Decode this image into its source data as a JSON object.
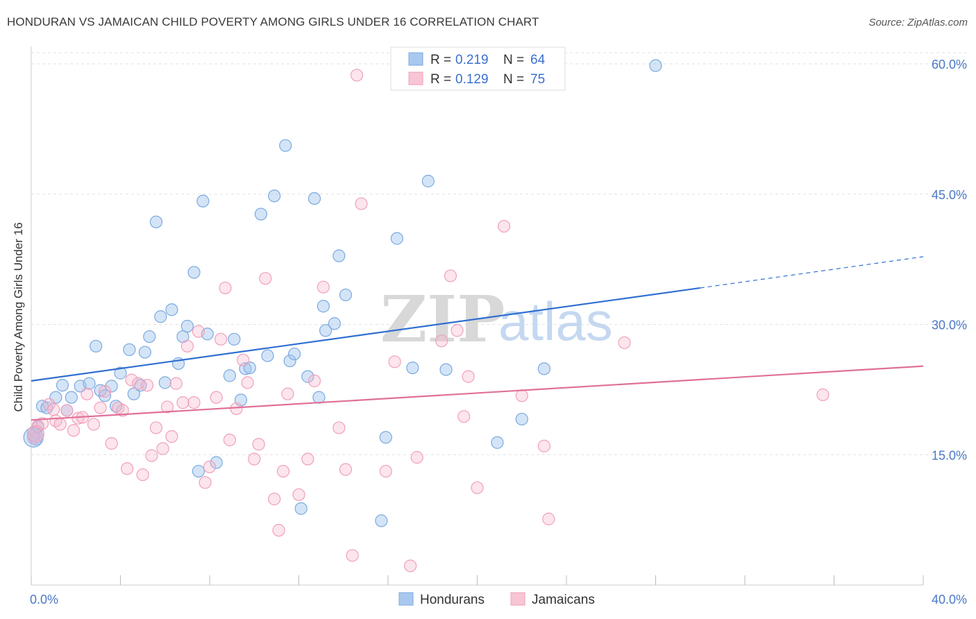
{
  "title": "HONDURAN VS JAMAICAN CHILD POVERTY AMONG GIRLS UNDER 16 CORRELATION CHART",
  "source": "Source: ZipAtlas.com",
  "watermark": {
    "zip": "ZIP",
    "atlas": "atlas"
  },
  "chart_data": {
    "type": "scatter",
    "ylabel": "Child Poverty Among Girls Under 16",
    "xlim": [
      0,
      40
    ],
    "ylim": [
      0,
      62
    ],
    "x_tick_labels": [
      "0.0%",
      "40.0%"
    ],
    "y_ticks": [
      15,
      30,
      45,
      60
    ],
    "y_tick_labels": [
      "15.0%",
      "30.0%",
      "45.0%",
      "60.0%"
    ],
    "grid": true,
    "legend": {
      "placement": "top-center",
      "entries": [
        {
          "r_label": "R =",
          "r_value": "0.219",
          "n_label": "N =",
          "n_value": "64"
        },
        {
          "r_label": "R =",
          "r_value": "0.129",
          "n_label": "N =",
          "n_value": "75"
        }
      ]
    },
    "series": [
      {
        "name": "Hondurans",
        "color": "#7aaae0",
        "trend": {
          "x0": 0,
          "y0": 23.5,
          "x1": 30,
          "y1": 34.2,
          "x_dash_end": 40,
          "y_dash_end": 37.8,
          "color": "#2f6fd1"
        },
        "points": [
          [
            0.1,
            17.2
          ],
          [
            0.2,
            16.8
          ],
          [
            0.3,
            18.2
          ],
          [
            0.5,
            20.6
          ],
          [
            0.7,
            20.4
          ],
          [
            1.1,
            21.6
          ],
          [
            1.4,
            23.0
          ],
          [
            1.6,
            20.1
          ],
          [
            1.8,
            21.6
          ],
          [
            2.2,
            22.9
          ],
          [
            2.6,
            23.2
          ],
          [
            2.9,
            27.5
          ],
          [
            3.1,
            22.4
          ],
          [
            3.3,
            21.8
          ],
          [
            3.6,
            22.9
          ],
          [
            3.8,
            20.6
          ],
          [
            4.0,
            24.4
          ],
          [
            4.4,
            27.1
          ],
          [
            4.6,
            22.0
          ],
          [
            4.9,
            23.0
          ],
          [
            5.1,
            26.8
          ],
          [
            5.3,
            28.6
          ],
          [
            5.6,
            41.8
          ],
          [
            5.8,
            30.9
          ],
          [
            6.0,
            23.3
          ],
          [
            6.3,
            31.7
          ],
          [
            6.6,
            25.5
          ],
          [
            6.8,
            28.6
          ],
          [
            7.0,
            29.8
          ],
          [
            7.3,
            36.0
          ],
          [
            7.5,
            13.1
          ],
          [
            7.7,
            44.2
          ],
          [
            7.9,
            28.9
          ],
          [
            8.3,
            14.1
          ],
          [
            8.9,
            24.1
          ],
          [
            9.1,
            28.3
          ],
          [
            9.4,
            21.3
          ],
          [
            9.6,
            24.9
          ],
          [
            9.8,
            25.0
          ],
          [
            10.3,
            42.7
          ],
          [
            10.6,
            26.4
          ],
          [
            10.9,
            44.8
          ],
          [
            11.4,
            50.6
          ],
          [
            11.6,
            25.8
          ],
          [
            11.8,
            26.6
          ],
          [
            12.1,
            8.8
          ],
          [
            12.4,
            24.0
          ],
          [
            12.7,
            44.5
          ],
          [
            12.9,
            21.6
          ],
          [
            13.1,
            32.1
          ],
          [
            13.2,
            29.3
          ],
          [
            13.6,
            30.1
          ],
          [
            13.8,
            37.9
          ],
          [
            14.1,
            33.4
          ],
          [
            15.7,
            7.4
          ],
          [
            15.9,
            17.0
          ],
          [
            16.4,
            39.9
          ],
          [
            17.1,
            25.0
          ],
          [
            17.8,
            46.5
          ],
          [
            20.9,
            16.4
          ],
          [
            22.0,
            19.1
          ],
          [
            23.0,
            24.9
          ],
          [
            28.0,
            59.8
          ],
          [
            18.6,
            24.8
          ]
        ]
      },
      {
        "name": "Jamaicans",
        "color": "#f0a0ba",
        "trend": {
          "x0": 0,
          "y0": 19.0,
          "x1": 40,
          "y1": 25.2,
          "color": "#e07098"
        },
        "points": [
          [
            0.1,
            16.9
          ],
          [
            0.2,
            17.6
          ],
          [
            0.3,
            18.3
          ],
          [
            0.5,
            18.6
          ],
          [
            0.8,
            20.8
          ],
          [
            1.0,
            20.2
          ],
          [
            1.1,
            18.9
          ],
          [
            1.3,
            18.5
          ],
          [
            1.6,
            20.1
          ],
          [
            1.9,
            17.8
          ],
          [
            2.1,
            19.2
          ],
          [
            2.3,
            19.3
          ],
          [
            2.5,
            22.0
          ],
          [
            2.8,
            18.5
          ],
          [
            3.1,
            20.4
          ],
          [
            3.3,
            22.3
          ],
          [
            3.6,
            16.3
          ],
          [
            3.9,
            20.4
          ],
          [
            4.1,
            20.1
          ],
          [
            4.3,
            13.4
          ],
          [
            4.5,
            23.6
          ],
          [
            4.8,
            23.2
          ],
          [
            5.0,
            12.7
          ],
          [
            5.2,
            23.0
          ],
          [
            5.4,
            14.9
          ],
          [
            5.6,
            18.1
          ],
          [
            5.9,
            15.7
          ],
          [
            6.1,
            20.5
          ],
          [
            6.3,
            17.1
          ],
          [
            6.5,
            23.2
          ],
          [
            6.8,
            21.0
          ],
          [
            7.0,
            27.5
          ],
          [
            7.3,
            21.0
          ],
          [
            7.5,
            29.2
          ],
          [
            7.8,
            11.8
          ],
          [
            8.0,
            13.6
          ],
          [
            8.3,
            21.6
          ],
          [
            8.5,
            28.3
          ],
          [
            8.7,
            34.2
          ],
          [
            8.9,
            16.7
          ],
          [
            9.2,
            20.3
          ],
          [
            9.5,
            25.9
          ],
          [
            9.7,
            23.3
          ],
          [
            10.0,
            14.5
          ],
          [
            10.2,
            16.2
          ],
          [
            10.5,
            35.3
          ],
          [
            10.9,
            9.9
          ],
          [
            11.1,
            6.3
          ],
          [
            11.3,
            13.1
          ],
          [
            11.5,
            22.0
          ],
          [
            12.0,
            10.4
          ],
          [
            12.4,
            14.5
          ],
          [
            12.7,
            23.5
          ],
          [
            13.1,
            34.3
          ],
          [
            13.8,
            18.1
          ],
          [
            14.1,
            13.3
          ],
          [
            14.4,
            3.4
          ],
          [
            14.6,
            58.7
          ],
          [
            14.8,
            43.9
          ],
          [
            15.9,
            13.1
          ],
          [
            16.3,
            25.7
          ],
          [
            17.0,
            2.2
          ],
          [
            17.3,
            14.7
          ],
          [
            18.4,
            28.1
          ],
          [
            18.8,
            35.6
          ],
          [
            19.1,
            29.3
          ],
          [
            19.4,
            19.4
          ],
          [
            19.6,
            24.0
          ],
          [
            20.0,
            11.2
          ],
          [
            21.2,
            41.3
          ],
          [
            22.0,
            21.8
          ],
          [
            23.0,
            16.0
          ],
          [
            23.2,
            7.6
          ],
          [
            26.6,
            27.9
          ],
          [
            35.5,
            21.9
          ]
        ]
      }
    ]
  },
  "bottom_legend": [
    {
      "label": "Hondurans",
      "color": "#a9c8ef",
      "stroke": "#7aaae0"
    },
    {
      "label": "Jamaicans",
      "color": "#f7c5d4",
      "stroke": "#f0a0ba"
    }
  ]
}
